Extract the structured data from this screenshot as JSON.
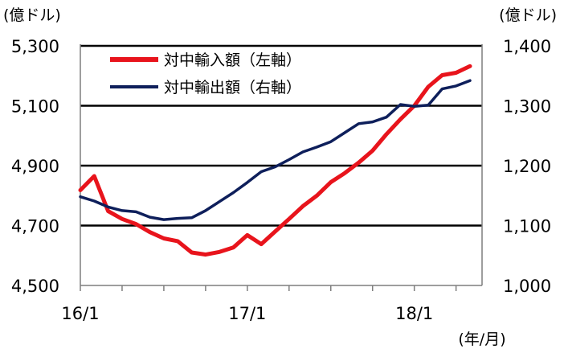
{
  "chart_data": {
    "type": "line",
    "title": "",
    "left_axis_unit": "(億ドル)",
    "right_axis_unit": "(億ドル)",
    "x_axis_unit": "(年/月)",
    "x_tick_labels": [
      "16/1",
      "17/1",
      "18/1"
    ],
    "x_tick_months": [
      0,
      12,
      24
    ],
    "y_left": {
      "min": 4500,
      "max": 5300,
      "step": 200,
      "tick_labels": [
        "4,500",
        "4,700",
        "4,900",
        "5,100",
        "5,300"
      ]
    },
    "y_right": {
      "min": 1000,
      "max": 1400,
      "step": 100,
      "tick_labels": [
        "1,000",
        "1,100",
        "1,200",
        "1,300",
        "1,400"
      ]
    },
    "grid": "horizontal",
    "legend_position": "top-left",
    "series": [
      {
        "name": "対中輸入額（左軸）",
        "axis": "left",
        "color": "#e8141c",
        "values": [
          4818,
          4865,
          4748,
          4722,
          4705,
          4678,
          4657,
          4648,
          4610,
          4603,
          4612,
          4627,
          4668,
          4638,
          4680,
          4722,
          4765,
          4800,
          4845,
          4875,
          4910,
          4950,
          5005,
          5055,
          5100,
          5163,
          5202,
          5210,
          5232
        ]
      },
      {
        "name": "対中輸出額（右軸）",
        "axis": "right",
        "color": "#0e1f5b",
        "values": [
          1148,
          1141,
          1131,
          1125,
          1123,
          1114,
          1110,
          1112,
          1113,
          1125,
          1140,
          1155,
          1172,
          1190,
          1198,
          1210,
          1223,
          1231,
          1240,
          1255,
          1270,
          1273,
          1281,
          1302,
          1299,
          1301,
          1328,
          1333,
          1342
        ]
      }
    ]
  }
}
